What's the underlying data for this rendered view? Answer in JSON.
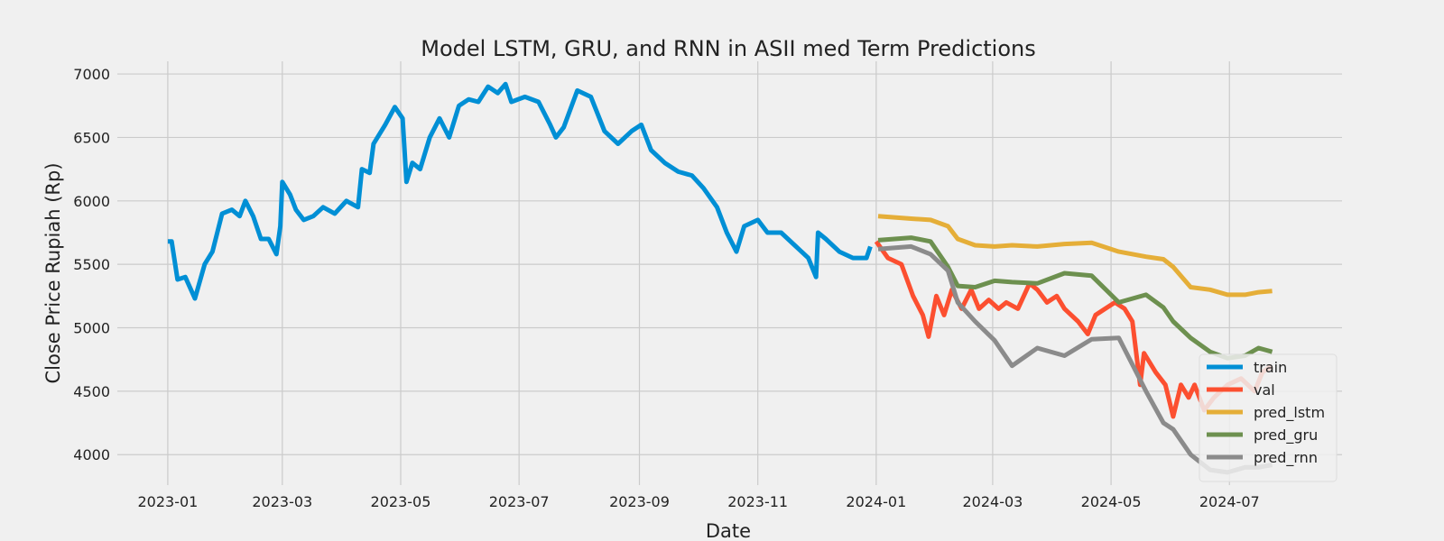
{
  "chart_data": {
    "type": "line",
    "title": "Model LSTM, GRU, and RNN in ASII med Term Predictions",
    "x_label": "Date",
    "y_label": "Close Price Rupiah (Rp)",
    "xlim": [
      -26,
      605
    ],
    "ylim": [
      3760,
      7100
    ],
    "xticks": [
      {
        "value": 0,
        "label": "2023-01"
      },
      {
        "value": 59,
        "label": "2023-03"
      },
      {
        "value": 120,
        "label": "2023-05"
      },
      {
        "value": 181,
        "label": "2023-07"
      },
      {
        "value": 243,
        "label": "2023-09"
      },
      {
        "value": 304,
        "label": "2023-11"
      },
      {
        "value": 365,
        "label": "2024-01"
      },
      {
        "value": 425,
        "label": "2024-03"
      },
      {
        "value": 486,
        "label": "2024-05"
      },
      {
        "value": 547,
        "label": "2024-07"
      }
    ],
    "yticks": [
      4000,
      4500,
      5000,
      5500,
      6000,
      6500,
      7000
    ],
    "grid": true,
    "legend": "lower right",
    "series": [
      {
        "name": "train",
        "color": "#008fd5",
        "x": [
          0,
          2,
          5,
          9,
          14,
          19,
          23,
          28,
          33,
          37,
          40,
          44,
          48,
          52,
          56,
          58,
          59,
          63,
          66,
          70,
          75,
          80,
          86,
          92,
          98,
          100,
          104,
          106,
          112,
          117,
          121,
          123,
          126,
          130,
          135,
          140,
          145,
          150,
          155,
          160,
          165,
          170,
          174,
          177,
          184,
          191,
          197,
          200,
          204,
          211,
          218,
          225,
          232,
          239,
          244,
          249,
          256,
          263,
          270,
          276,
          283,
          288,
          293,
          297,
          304,
          309,
          316,
          323,
          330,
          334,
          335,
          339,
          346,
          353,
          360,
          362
        ],
        "values": [
          5680,
          5680,
          5380,
          5400,
          5230,
          5500,
          5600,
          5900,
          5930,
          5880,
          6000,
          5880,
          5700,
          5700,
          5580,
          5800,
          6150,
          6050,
          5930,
          5850,
          5880,
          5950,
          5900,
          6000,
          5950,
          6250,
          6220,
          6450,
          6600,
          6740,
          6650,
          6150,
          6300,
          6250,
          6500,
          6650,
          6500,
          6750,
          6800,
          6780,
          6900,
          6850,
          6920,
          6780,
          6820,
          6780,
          6600,
          6500,
          6580,
          6870,
          6820,
          6550,
          6450,
          6550,
          6600,
          6400,
          6300,
          6230,
          6200,
          6100,
          5950,
          5750,
          5600,
          5800,
          5850,
          5750,
          5750,
          5650,
          5550,
          5400,
          5750,
          5700,
          5600,
          5550,
          5550,
          5640
        ]
      },
      {
        "name": "val",
        "color": "#fc4f30",
        "x": [
          365,
          371,
          378,
          384,
          389,
          392,
          396,
          400,
          404,
          409,
          414,
          418,
          423,
          428,
          432,
          438,
          444,
          448,
          453,
          458,
          462,
          469,
          474,
          478,
          483,
          488,
          493,
          497,
          501,
          503,
          509,
          514,
          518,
          522,
          526,
          529,
          534,
          539,
          546,
          553,
          560,
          564,
          569
        ],
        "values": [
          5680,
          5550,
          5500,
          5250,
          5100,
          4930,
          5250,
          5100,
          5300,
          5150,
          5300,
          5150,
          5220,
          5150,
          5200,
          5150,
          5350,
          5300,
          5200,
          5250,
          5150,
          5050,
          4950,
          5100,
          5150,
          5200,
          5150,
          5050,
          4550,
          4800,
          4650,
          4550,
          4300,
          4550,
          4450,
          4550,
          4350,
          4450,
          4550,
          4600,
          4500,
          4650,
          4700
        ]
      },
      {
        "name": "pred_lstm",
        "color": "#e5ae38",
        "x": [
          366,
          383,
          393,
          402,
          407,
          416,
          426,
          435,
          448,
          462,
          476,
          490,
          504,
          513,
          518,
          527,
          537,
          546,
          555,
          562,
          569
        ],
        "values": [
          5880,
          5860,
          5850,
          5800,
          5700,
          5650,
          5640,
          5650,
          5640,
          5660,
          5670,
          5600,
          5560,
          5540,
          5480,
          5320,
          5300,
          5260,
          5260,
          5280,
          5290
        ]
      },
      {
        "name": "pred_gru",
        "color": "#6d904f",
        "x": [
          366,
          383,
          393,
          402,
          407,
          416,
          426,
          435,
          448,
          462,
          476,
          490,
          504,
          513,
          518,
          527,
          537,
          546,
          555,
          562,
          569
        ],
        "values": [
          5690,
          5710,
          5680,
          5480,
          5330,
          5320,
          5370,
          5360,
          5350,
          5430,
          5410,
          5200,
          5260,
          5160,
          5050,
          4920,
          4810,
          4760,
          4780,
          4840,
          4810
        ]
      },
      {
        "name": "pred_rnn",
        "color": "#8b8b8b",
        "x": [
          366,
          383,
          393,
          402,
          407,
          416,
          426,
          435,
          448,
          462,
          476,
          490,
          504,
          513,
          518,
          527,
          537,
          546,
          555,
          562,
          569
        ],
        "values": [
          5620,
          5640,
          5580,
          5450,
          5200,
          5050,
          4900,
          4700,
          4840,
          4780,
          4910,
          4920,
          4500,
          4250,
          4200,
          4000,
          3880,
          3860,
          3900,
          3900,
          3920
        ]
      }
    ]
  }
}
